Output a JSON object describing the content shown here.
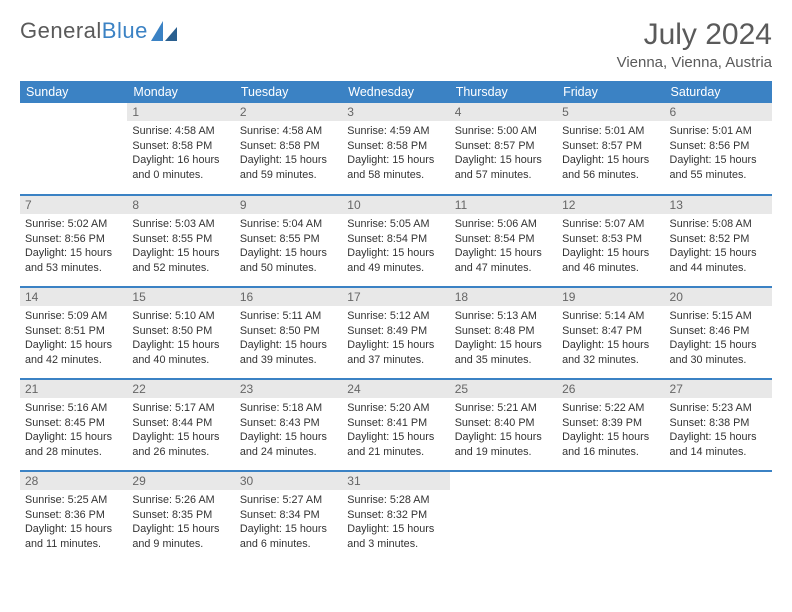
{
  "logo": {
    "part1": "General",
    "part2": "Blue"
  },
  "title": "July 2024",
  "location": "Vienna, Vienna, Austria",
  "colors": {
    "header_bg": "#3b82c4",
    "header_fg": "#ffffff",
    "daynum_bg": "#e8e8e8",
    "daynum_fg": "#666666",
    "body_fg": "#333333",
    "page_bg": "#ffffff",
    "row_divider": "#3b82c4",
    "logo_gray": "#5a5a5a",
    "logo_blue": "#3b82c4"
  },
  "weekday_labels": [
    "Sunday",
    "Monday",
    "Tuesday",
    "Wednesday",
    "Thursday",
    "Friday",
    "Saturday"
  ],
  "weeks": [
    [
      null,
      {
        "n": "1",
        "sunrise": "4:58 AM",
        "sunset": "8:58 PM",
        "daylight": "16 hours and 0 minutes."
      },
      {
        "n": "2",
        "sunrise": "4:58 AM",
        "sunset": "8:58 PM",
        "daylight": "15 hours and 59 minutes."
      },
      {
        "n": "3",
        "sunrise": "4:59 AM",
        "sunset": "8:58 PM",
        "daylight": "15 hours and 58 minutes."
      },
      {
        "n": "4",
        "sunrise": "5:00 AM",
        "sunset": "8:57 PM",
        "daylight": "15 hours and 57 minutes."
      },
      {
        "n": "5",
        "sunrise": "5:01 AM",
        "sunset": "8:57 PM",
        "daylight": "15 hours and 56 minutes."
      },
      {
        "n": "6",
        "sunrise": "5:01 AM",
        "sunset": "8:56 PM",
        "daylight": "15 hours and 55 minutes."
      }
    ],
    [
      {
        "n": "7",
        "sunrise": "5:02 AM",
        "sunset": "8:56 PM",
        "daylight": "15 hours and 53 minutes."
      },
      {
        "n": "8",
        "sunrise": "5:03 AM",
        "sunset": "8:55 PM",
        "daylight": "15 hours and 52 minutes."
      },
      {
        "n": "9",
        "sunrise": "5:04 AM",
        "sunset": "8:55 PM",
        "daylight": "15 hours and 50 minutes."
      },
      {
        "n": "10",
        "sunrise": "5:05 AM",
        "sunset": "8:54 PM",
        "daylight": "15 hours and 49 minutes."
      },
      {
        "n": "11",
        "sunrise": "5:06 AM",
        "sunset": "8:54 PM",
        "daylight": "15 hours and 47 minutes."
      },
      {
        "n": "12",
        "sunrise": "5:07 AM",
        "sunset": "8:53 PM",
        "daylight": "15 hours and 46 minutes."
      },
      {
        "n": "13",
        "sunrise": "5:08 AM",
        "sunset": "8:52 PM",
        "daylight": "15 hours and 44 minutes."
      }
    ],
    [
      {
        "n": "14",
        "sunrise": "5:09 AM",
        "sunset": "8:51 PM",
        "daylight": "15 hours and 42 minutes."
      },
      {
        "n": "15",
        "sunrise": "5:10 AM",
        "sunset": "8:50 PM",
        "daylight": "15 hours and 40 minutes."
      },
      {
        "n": "16",
        "sunrise": "5:11 AM",
        "sunset": "8:50 PM",
        "daylight": "15 hours and 39 minutes."
      },
      {
        "n": "17",
        "sunrise": "5:12 AM",
        "sunset": "8:49 PM",
        "daylight": "15 hours and 37 minutes."
      },
      {
        "n": "18",
        "sunrise": "5:13 AM",
        "sunset": "8:48 PM",
        "daylight": "15 hours and 35 minutes."
      },
      {
        "n": "19",
        "sunrise": "5:14 AM",
        "sunset": "8:47 PM",
        "daylight": "15 hours and 32 minutes."
      },
      {
        "n": "20",
        "sunrise": "5:15 AM",
        "sunset": "8:46 PM",
        "daylight": "15 hours and 30 minutes."
      }
    ],
    [
      {
        "n": "21",
        "sunrise": "5:16 AM",
        "sunset": "8:45 PM",
        "daylight": "15 hours and 28 minutes."
      },
      {
        "n": "22",
        "sunrise": "5:17 AM",
        "sunset": "8:44 PM",
        "daylight": "15 hours and 26 minutes."
      },
      {
        "n": "23",
        "sunrise": "5:18 AM",
        "sunset": "8:43 PM",
        "daylight": "15 hours and 24 minutes."
      },
      {
        "n": "24",
        "sunrise": "5:20 AM",
        "sunset": "8:41 PM",
        "daylight": "15 hours and 21 minutes."
      },
      {
        "n": "25",
        "sunrise": "5:21 AM",
        "sunset": "8:40 PM",
        "daylight": "15 hours and 19 minutes."
      },
      {
        "n": "26",
        "sunrise": "5:22 AM",
        "sunset": "8:39 PM",
        "daylight": "15 hours and 16 minutes."
      },
      {
        "n": "27",
        "sunrise": "5:23 AM",
        "sunset": "8:38 PM",
        "daylight": "15 hours and 14 minutes."
      }
    ],
    [
      {
        "n": "28",
        "sunrise": "5:25 AM",
        "sunset": "8:36 PM",
        "daylight": "15 hours and 11 minutes."
      },
      {
        "n": "29",
        "sunrise": "5:26 AM",
        "sunset": "8:35 PM",
        "daylight": "15 hours and 9 minutes."
      },
      {
        "n": "30",
        "sunrise": "5:27 AM",
        "sunset": "8:34 PM",
        "daylight": "15 hours and 6 minutes."
      },
      {
        "n": "31",
        "sunrise": "5:28 AM",
        "sunset": "8:32 PM",
        "daylight": "15 hours and 3 minutes."
      },
      null,
      null,
      null
    ]
  ],
  "labels": {
    "sunrise": "Sunrise:",
    "sunset": "Sunset:",
    "daylight": "Daylight:"
  }
}
